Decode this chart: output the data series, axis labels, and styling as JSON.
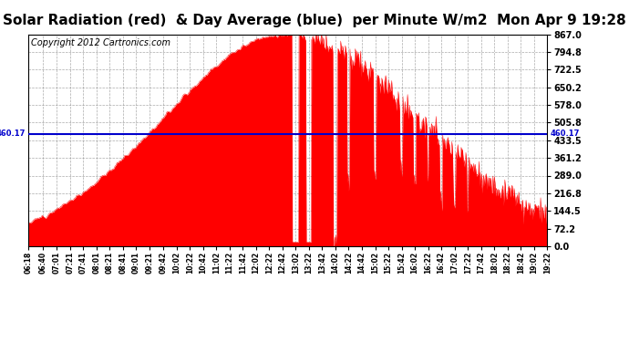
{
  "title": "Solar Radiation (red)  & Day Average (blue)  per Minute W/m2  Mon Apr 9 19:28",
  "copyright": "Copyright 2012 Cartronics.com",
  "avg_value": 460.17,
  "y_max": 867.0,
  "y_min": 0.0,
  "y_ticks": [
    0.0,
    72.2,
    144.5,
    216.8,
    289.0,
    361.2,
    433.5,
    505.8,
    578.0,
    650.2,
    722.5,
    794.8,
    867.0
  ],
  "x_tick_labels": [
    "06:18",
    "06:40",
    "07:01",
    "07:21",
    "07:41",
    "08:01",
    "08:21",
    "08:41",
    "09:01",
    "09:21",
    "09:42",
    "10:02",
    "10:22",
    "10:42",
    "11:02",
    "11:22",
    "11:42",
    "12:02",
    "12:22",
    "12:42",
    "13:02",
    "13:22",
    "13:42",
    "14:02",
    "14:22",
    "14:42",
    "15:02",
    "15:22",
    "15:42",
    "16:02",
    "16:22",
    "16:42",
    "17:02",
    "17:22",
    "17:42",
    "18:02",
    "18:22",
    "18:42",
    "19:02",
    "19:22"
  ],
  "background_color": "#ffffff",
  "fill_color": "#ff0000",
  "avg_line_color": "#0000cc",
  "grid_color": "#888888",
  "title_color": "#000000",
  "title_fontsize": 11,
  "copyright_fontsize": 7
}
